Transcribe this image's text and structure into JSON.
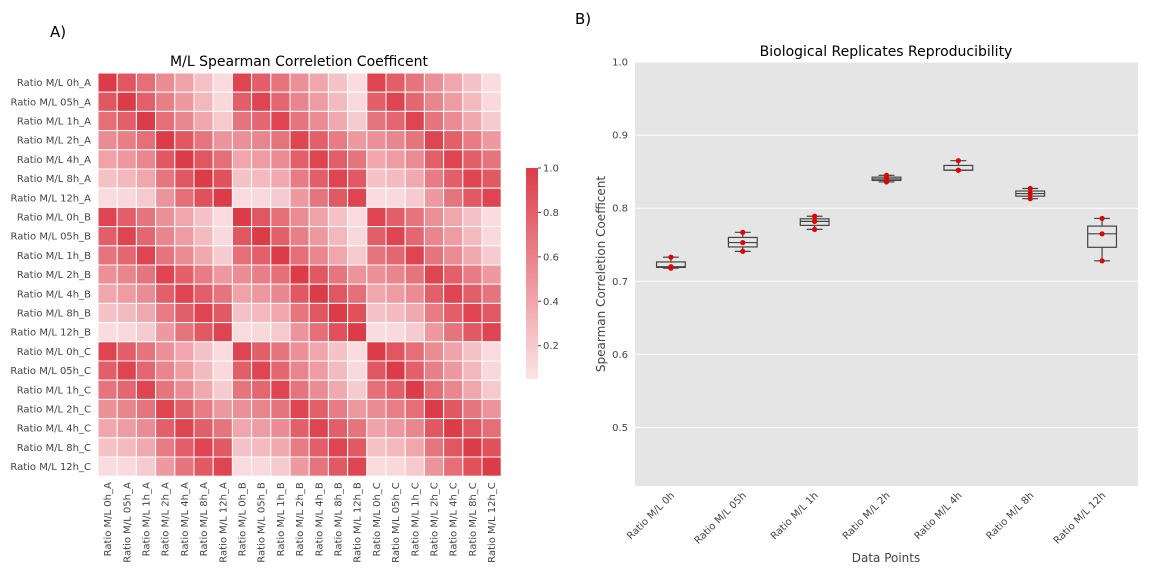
{
  "panel_a_label": "A)",
  "panel_b_label": "B)",
  "chart_data": [
    {
      "type": "heatmap",
      "title": "M/L Spearman Correletion Coefficent",
      "labels": [
        "Ratio M/L 0h_A",
        "Ratio M/L 05h_A",
        "Ratio M/L 1h_A",
        "Ratio M/L 2h_A",
        "Ratio M/L 4h_A",
        "Ratio M/L 8h_A",
        "Ratio M/L 12h_A",
        "Ratio M/L 0h_B",
        "Ratio M/L 05h_B",
        "Ratio M/L 1h_B",
        "Ratio M/L 2h_B",
        "Ratio M/L 4h_B",
        "Ratio M/L 8h_B",
        "Ratio M/L 12h_B",
        "Ratio M/L 0h_C",
        "Ratio M/L 05h_C",
        "Ratio M/L 1h_C",
        "Ratio M/L 2h_C",
        "Ratio M/L 4h_C",
        "Ratio M/L 8h_C",
        "Ratio M/L 12h_C"
      ],
      "timepoint_profiles": [
        [
          1.0,
          0.85,
          0.72,
          0.55,
          0.42,
          0.25,
          0.1
        ],
        [
          0.85,
          1.0,
          0.8,
          0.62,
          0.48,
          0.3,
          0.12
        ],
        [
          0.72,
          0.8,
          1.0,
          0.72,
          0.58,
          0.4,
          0.2
        ],
        [
          0.55,
          0.62,
          0.72,
          1.0,
          0.84,
          0.68,
          0.5
        ],
        [
          0.42,
          0.48,
          0.58,
          0.84,
          1.0,
          0.85,
          0.72
        ],
        [
          0.25,
          0.3,
          0.4,
          0.68,
          0.85,
          1.0,
          0.88
        ],
        [
          0.1,
          0.12,
          0.2,
          0.5,
          0.72,
          0.88,
          1.0
        ]
      ],
      "replicate_factor": 0.95,
      "colorbar": {
        "min": 0.05,
        "max": 1.0,
        "ticks": [
          0.2,
          0.4,
          0.6,
          0.8,
          1.0
        ],
        "tick_labels": [
          "0.2",
          "0.4",
          "0.6",
          "0.8",
          "1.0"
        ]
      },
      "color_low": "#fbe4e6",
      "color_high": "#dc3c48"
    },
    {
      "type": "box",
      "title": "Biological Replicates Reproducibility",
      "xlabel": "Data Points",
      "ylabel": "Spearman Correletion Coefficent",
      "ylim": [
        0.42,
        1.0
      ],
      "yticks": [
        0.5,
        0.6,
        0.7,
        0.8,
        0.9,
        1.0
      ],
      "ytick_labels": [
        "0.5",
        "0.6",
        "0.7",
        "0.8",
        "0.9",
        "1.0"
      ],
      "grid": true,
      "background": "#e5e5e5",
      "point_color": "#e00000",
      "categories": [
        "Ratio M/L 0h",
        "Ratio M/L 05h",
        "Ratio M/L 1h",
        "Ratio M/L 2h",
        "Ratio M/L 4h",
        "Ratio M/L 8h",
        "Ratio M/L 12h"
      ],
      "points": [
        [
          0.733,
          0.72,
          0.718
        ],
        [
          0.767,
          0.753,
          0.741
        ],
        [
          0.789,
          0.782,
          0.771
        ],
        [
          0.845,
          0.84,
          0.836
        ],
        [
          0.865,
          0.852,
          0.852
        ],
        [
          0.827,
          0.82,
          0.813
        ],
        [
          0.786,
          0.765,
          0.728
        ]
      ]
    }
  ]
}
